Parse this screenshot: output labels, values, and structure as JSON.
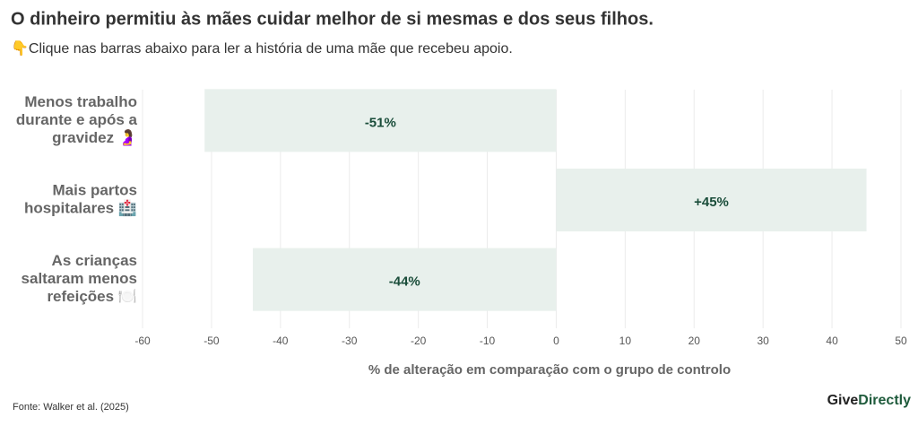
{
  "chart_data": {
    "type": "barh",
    "title": "O dinheiro permitiu às mães cuidar melhor de si mesmas e dos seus filhos.",
    "subtitle": "👇Clique nas barras abaixo para ler a história de uma mãe que recebeu apoio.",
    "categories": [
      [
        "Menos trabalho",
        "durante e após a",
        "gravidez 🤰"
      ],
      [
        "Mais partos",
        "hospitalares 🏥"
      ],
      [
        "As crianças",
        "saltaram menos",
        "refeições 🍽️"
      ]
    ],
    "values": [
      -51,
      45,
      -44
    ],
    "value_labels": [
      "-51%",
      "+45%",
      "-44%"
    ],
    "color": "#e8f0ec",
    "xlim": [
      -60,
      50
    ],
    "xticks": [
      -60,
      -50,
      -40,
      -30,
      -20,
      -10,
      0,
      10,
      20,
      30,
      40,
      50
    ],
    "xlabel": "% de alteração em comparação com o grupo de controlo",
    "grid": true,
    "source": "Fonte: Walker et al. (2025)",
    "logo": [
      "Give",
      "Directly"
    ]
  }
}
